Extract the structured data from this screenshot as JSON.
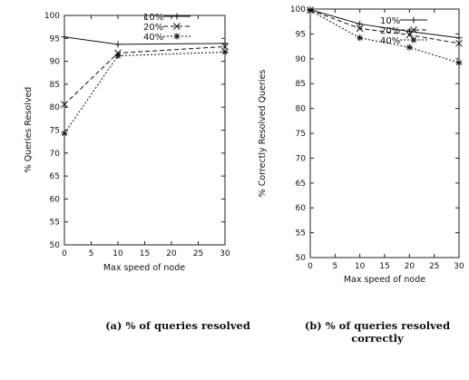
{
  "chart_data": [
    {
      "type": "line",
      "title": "",
      "xlabel": "Max speed of node",
      "ylabel": "% Queries Resolved",
      "x": [
        0,
        10,
        30
      ],
      "xlim": [
        0,
        30
      ],
      "xticks": [
        0,
        5,
        10,
        15,
        20,
        25,
        30
      ],
      "ylim": [
        50,
        100
      ],
      "yticks": [
        50,
        55,
        60,
        65,
        70,
        75,
        80,
        85,
        90,
        95,
        100
      ],
      "grid": false,
      "legend_position": "top-right",
      "series": [
        {
          "name": "10%",
          "marker": "plus",
          "dash": "solid",
          "values": [
            95.3,
            93.7,
            93.9
          ]
        },
        {
          "name": "20%",
          "marker": "cross",
          "dash": "dashed",
          "values": [
            80.6,
            91.8,
            93.2
          ]
        },
        {
          "name": "40%",
          "marker": "star",
          "dash": "dotted",
          "values": [
            74.3,
            91.2,
            92.0
          ]
        }
      ]
    },
    {
      "type": "line",
      "title": "",
      "xlabel": "Max speed of node",
      "ylabel": "% Correctly Resolved Queries",
      "x": [
        0,
        10,
        20,
        30
      ],
      "xlim": [
        0,
        30
      ],
      "xticks": [
        0,
        5,
        10,
        15,
        20,
        25,
        30
      ],
      "ylim": [
        50,
        100
      ],
      "yticks": [
        50,
        55,
        60,
        65,
        70,
        75,
        80,
        85,
        90,
        95,
        100
      ],
      "grid": false,
      "legend_position": "top-right",
      "series": [
        {
          "name": "10%",
          "marker": "plus",
          "dash": "solid",
          "values": [
            99.9,
            97.0,
            95.5,
            94.2
          ]
        },
        {
          "name": "20%",
          "marker": "cross",
          "dash": "dashed",
          "values": [
            99.8,
            96.1,
            94.8,
            93.1
          ]
        },
        {
          "name": "40%",
          "marker": "star",
          "dash": "dotted",
          "values": [
            99.7,
            94.2,
            92.3,
            89.2
          ]
        }
      ]
    }
  ],
  "captions": {
    "a": "(a) % of queries resolved",
    "b_line1": "(b) % of queries resolved",
    "b_line2": "correctly"
  }
}
